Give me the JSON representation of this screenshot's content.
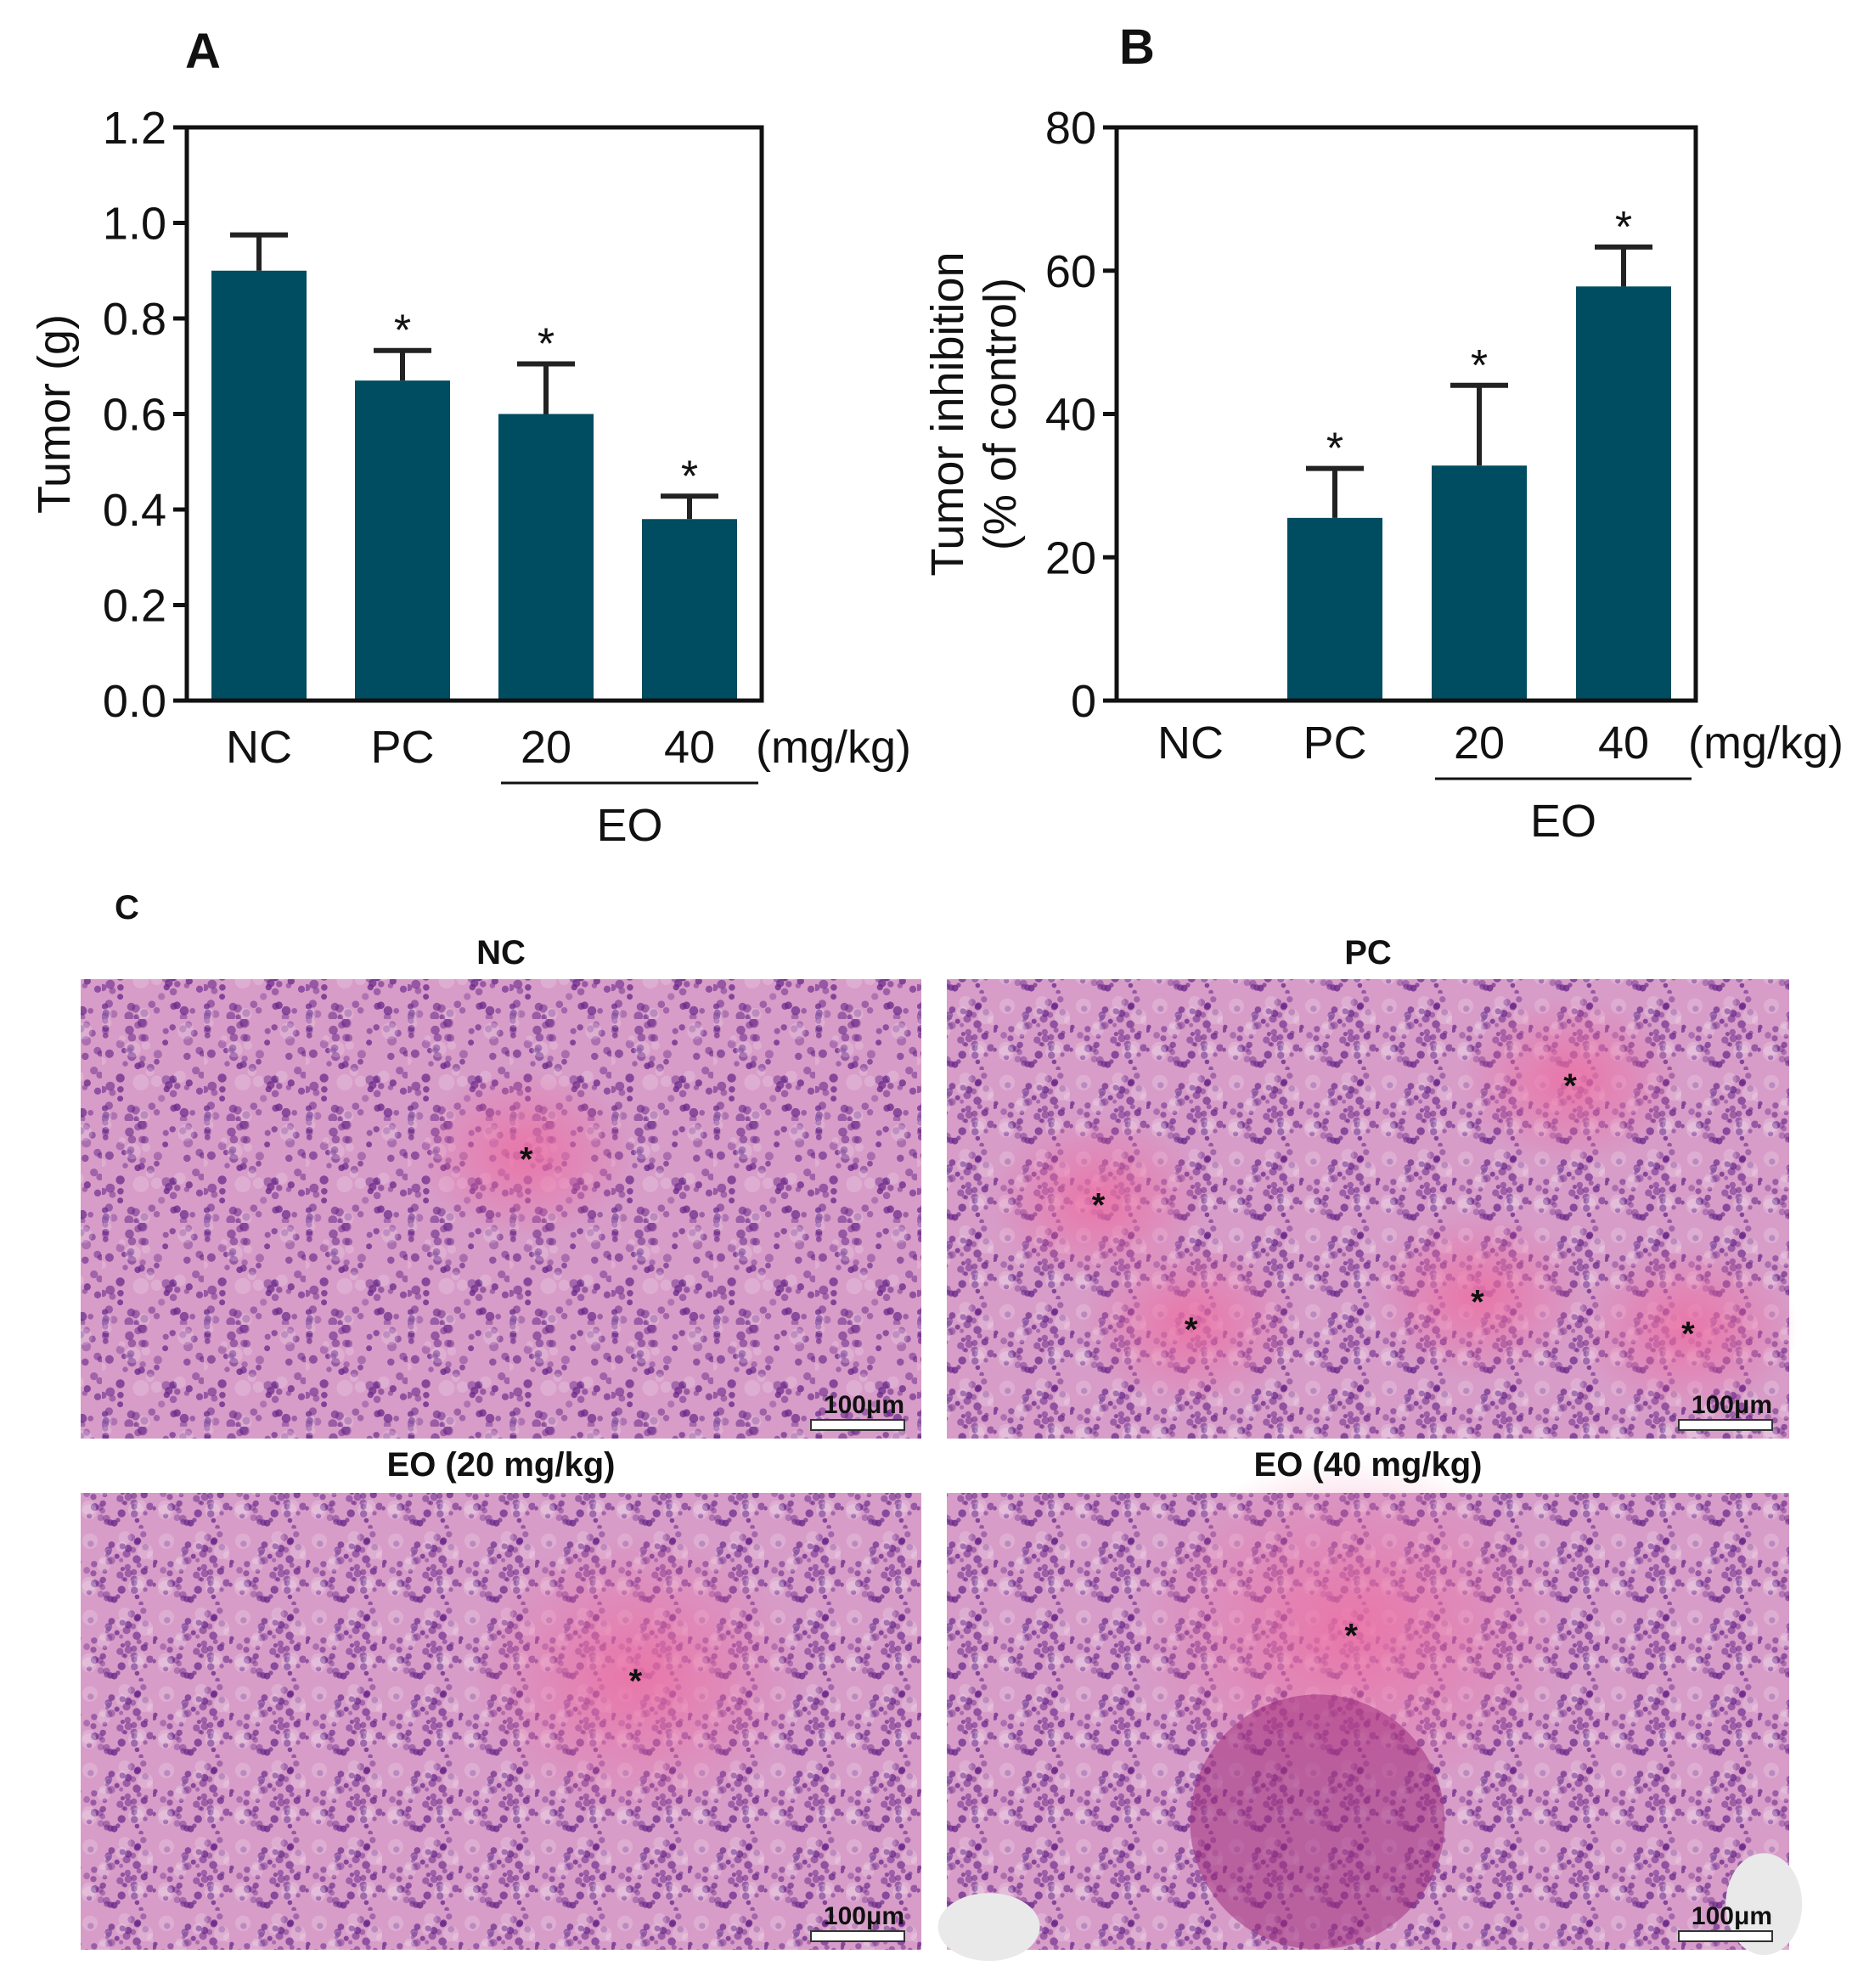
{
  "chart_data": [
    {
      "panel": "A",
      "type": "bar",
      "categories": [
        "NC",
        "PC",
        "20",
        "40"
      ],
      "values": [
        0.9,
        0.67,
        0.6,
        0.38
      ],
      "errors": [
        0.075,
        0.063,
        0.105,
        0.048
      ],
      "significance": [
        "",
        "*",
        "*",
        "*"
      ],
      "ylabel": "Tumor (g)",
      "ylim": [
        0,
        1.2
      ],
      "yticks": [
        "0.0",
        "0.2",
        "0.4",
        "0.6",
        "0.8",
        "1.0",
        "1.2"
      ],
      "unit_label": "(mg/kg)",
      "group_label": "EO",
      "bar_color": "#004c60"
    },
    {
      "panel": "B",
      "type": "bar",
      "categories": [
        "NC",
        "PC",
        "20",
        "40"
      ],
      "values": [
        0,
        25.5,
        32.8,
        57.8
      ],
      "errors": [
        0,
        6.9,
        11.2,
        5.5
      ],
      "significance": [
        "",
        "*",
        "*",
        "*"
      ],
      "ylabel_lines": [
        "Tumor inhibition",
        "(% of control)"
      ],
      "ylim": [
        0,
        80
      ],
      "yticks": [
        "0",
        "20",
        "40",
        "60",
        "80"
      ],
      "unit_label": "(mg/kg)",
      "group_label": "EO",
      "bar_color": "#004c60"
    }
  ],
  "histology": {
    "panel": "C",
    "panels": [
      {
        "title": "NC",
        "scale": "100μm",
        "stars": [
          [
            0.53,
            0.38
          ]
        ]
      },
      {
        "title": "PC",
        "scale": "100μm",
        "stars": [
          [
            0.74,
            0.22
          ],
          [
            0.18,
            0.48
          ],
          [
            0.29,
            0.75
          ],
          [
            0.63,
            0.69
          ],
          [
            0.88,
            0.76
          ]
        ]
      },
      {
        "title": "EO (20 mg/kg)",
        "scale": "100μm",
        "stars": [
          [
            0.66,
            0.4
          ]
        ]
      },
      {
        "title": "EO (40 mg/kg)",
        "scale": "100μm",
        "stars": [
          [
            0.48,
            0.3
          ]
        ]
      }
    ],
    "colors": {
      "tissue_base": "#c069b0",
      "tissue_light": "#d79cc8",
      "necrosis": "#ec6fa3",
      "nuclei": "#6a2a8a"
    }
  }
}
